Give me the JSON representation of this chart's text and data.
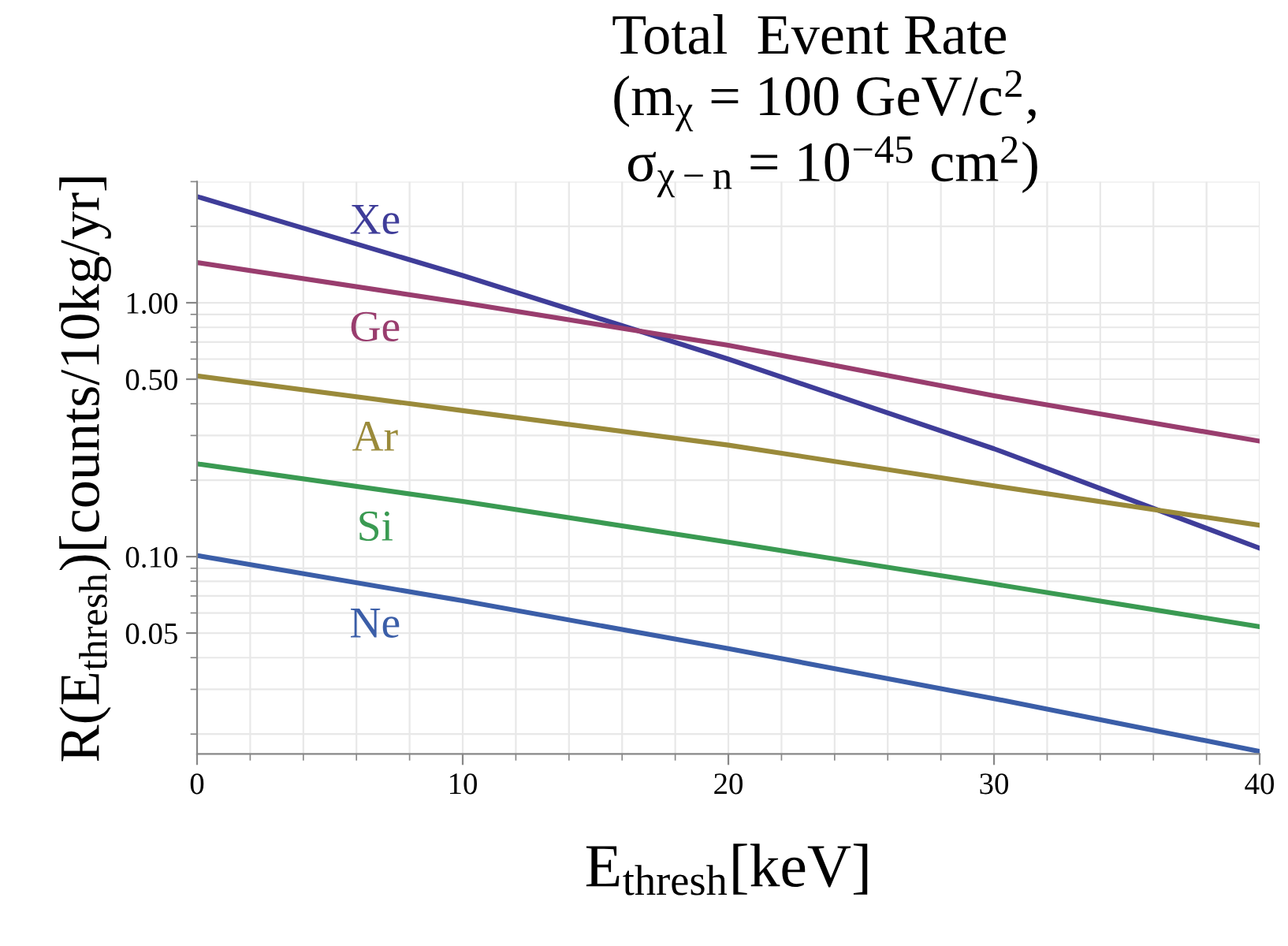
{
  "chart_data": {
    "type": "line",
    "title": "Total  Event Rate\n(m$_{χ}$ = 100 GeV/c$^{2}$,\n σ$_{χ−n}$ = 10$^{−45}$ cm$^{2}$)",
    "xlabel": "E$_{thresh}$[keV]",
    "ylabel": "R(E$_{thresh}$)[counts/10kg/yr]",
    "x": [
      0,
      10,
      20,
      30,
      40
    ],
    "series": [
      {
        "name": "Xe",
        "color": "#3f3d99",
        "values": [
          2.62,
          1.28,
          0.6,
          0.266,
          0.108
        ]
      },
      {
        "name": "Ge",
        "color": "#993d6e",
        "values": [
          1.44,
          1.0,
          0.68,
          0.43,
          0.285
        ]
      },
      {
        "name": "Ar",
        "color": "#9a8a3a",
        "values": [
          0.515,
          0.376,
          0.275,
          0.19,
          0.133
        ]
      },
      {
        "name": "Si",
        "color": "#3a9a52",
        "values": [
          0.232,
          0.165,
          0.114,
          0.078,
          0.053
        ]
      },
      {
        "name": "Ne",
        "color": "#3b5ea8",
        "values": [
          0.101,
          0.067,
          0.0434,
          0.0276,
          0.0171
        ]
      }
    ],
    "log": "y",
    "xlim": [
      0,
      40
    ],
    "ylim": [
      0.0167,
      3
    ],
    "xticks": [
      0,
      10,
      20,
      30,
      40
    ],
    "yticks": [
      {
        "value": 0.05,
        "label": "0.05"
      },
      {
        "value": 0.1,
        "label": "0.10"
      },
      {
        "value": 0.5,
        "label": "0.50"
      },
      {
        "value": 1,
        "label": "1.00"
      }
    ],
    "grid": true,
    "legend": false,
    "marker": "none",
    "line_style": "solid"
  }
}
